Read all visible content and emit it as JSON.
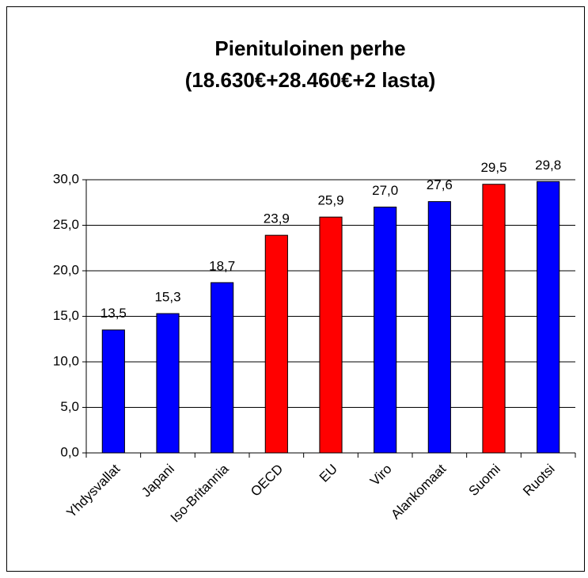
{
  "chart_data": {
    "type": "bar",
    "title": [
      "Pienituloinen perhe",
      "(18.630€+28.460€+2 lasta)"
    ],
    "categories": [
      "Yhdysvallat",
      "Japani",
      "Iso-Britannia",
      "OECD",
      "EU",
      "Viro",
      "Alankomaat",
      "Suomi",
      "Ruotsi"
    ],
    "values": [
      13.5,
      15.3,
      18.7,
      23.9,
      25.9,
      27.0,
      27.6,
      29.5,
      29.8
    ],
    "value_labels": [
      "13,5",
      "15,3",
      "18,7",
      "23,9",
      "25,9",
      "27,0",
      "27,6",
      "29,5",
      "29,8"
    ],
    "colors": [
      "#0000ff",
      "#0000ff",
      "#0000ff",
      "#ff0000",
      "#ff0000",
      "#0000ff",
      "#0000ff",
      "#ff0000",
      "#0000ff"
    ],
    "ylim": [
      0,
      30
    ],
    "yticks": [
      {
        "value": 0,
        "label": "0,0"
      },
      {
        "value": 5,
        "label": "5,0"
      },
      {
        "value": 10,
        "label": "10,0"
      },
      {
        "value": 15,
        "label": "15,0"
      },
      {
        "value": 20,
        "label": "20,0"
      },
      {
        "value": 25,
        "label": "25,0"
      },
      {
        "value": 30,
        "label": "30,0"
      }
    ],
    "grid": true
  }
}
